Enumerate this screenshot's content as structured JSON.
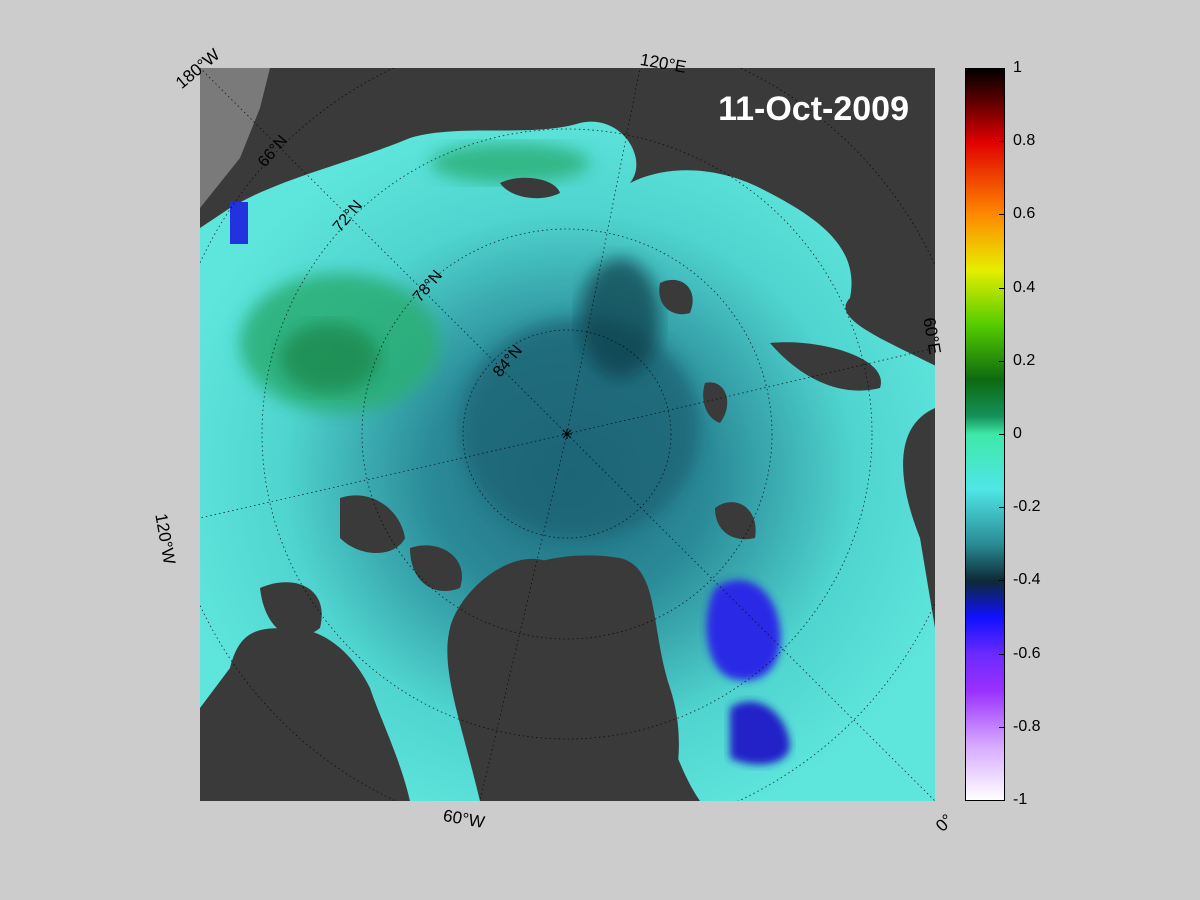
{
  "map": {
    "date": "11-Oct-2009",
    "lat_labels": [
      "66°N",
      "72°N",
      "78°N",
      "84°N"
    ],
    "lon_labels": [
      "180°W",
      "120°E",
      "60°E",
      "0°",
      "60°W",
      "120°W"
    ],
    "colors": {
      "land": "#3a3a3a",
      "land_far": "#7a7a7a",
      "ocean_base": "#4fd8cf",
      "near_zero": "#2ab27f",
      "central_deep": "#1d6f82",
      "negative_strong": "#2233dd",
      "green_anomaly": "#34a84a"
    }
  },
  "colorbar": {
    "min": -1,
    "max": 1,
    "tick_labels": [
      "1",
      "0.8",
      "0.6",
      "0.4",
      "0.2",
      "0",
      "-0.2",
      "-0.4",
      "-0.6",
      "-0.8",
      "-1"
    ],
    "stops": [
      {
        "value": 1.0,
        "color": "#000000"
      },
      {
        "value": 0.9,
        "color": "#6a0000"
      },
      {
        "value": 0.8,
        "color": "#e00000"
      },
      {
        "value": 0.6,
        "color": "#ff8a00"
      },
      {
        "value": 0.45,
        "color": "#e6ee00"
      },
      {
        "value": 0.3,
        "color": "#55cc00"
      },
      {
        "value": 0.15,
        "color": "#0d6a10"
      },
      {
        "value": 0.05,
        "color": "#14915a"
      },
      {
        "value": 0.0,
        "color": "#3fe8a8"
      },
      {
        "value": -0.15,
        "color": "#4fe6e6"
      },
      {
        "value": -0.3,
        "color": "#2a8b94"
      },
      {
        "value": -0.4,
        "color": "#0d2a36"
      },
      {
        "value": -0.5,
        "color": "#1010ff"
      },
      {
        "value": -0.6,
        "color": "#6a2aff"
      },
      {
        "value": -0.7,
        "color": "#9a30ff"
      },
      {
        "value": -0.85,
        "color": "#d6a8ff"
      },
      {
        "value": -1.0,
        "color": "#ffffff"
      }
    ]
  }
}
